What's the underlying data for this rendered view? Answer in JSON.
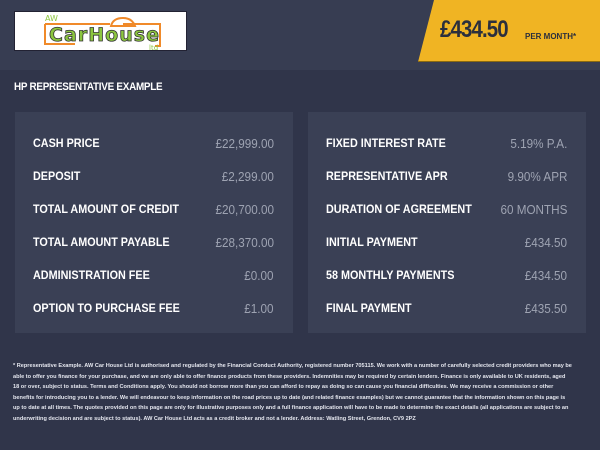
{
  "header": {
    "logo_text": "AW CarHouse Ltd",
    "monthly_price": "£434.50",
    "per_month_label": "PER MONTH*"
  },
  "section_title": "HP REPRESENTATIVE EXAMPLE",
  "left": [
    {
      "label": "CASH PRICE",
      "value": "£22,999.00"
    },
    {
      "label": "DEPOSIT",
      "value": "£2,299.00"
    },
    {
      "label": "TOTAL AMOUNT OF CREDIT",
      "value": "£20,700.00"
    },
    {
      "label": "TOTAL AMOUNT PAYABLE",
      "value": "£28,370.00"
    },
    {
      "label": "ADMINISTRATION FEE",
      "value": "£0.00"
    },
    {
      "label": "OPTION TO PURCHASE FEE",
      "value": "£1.00"
    }
  ],
  "right": [
    {
      "label": "FIXED INTEREST RATE",
      "value": "5.19% P.A."
    },
    {
      "label": "REPRESENTATIVE APR",
      "value": "9.90% APR"
    },
    {
      "label": "DURATION OF AGREEMENT",
      "value": "60 MONTHS"
    },
    {
      "label": "INITIAL PAYMENT",
      "value": "£434.50"
    },
    {
      "label": "58 MONTHLY PAYMENTS",
      "value": "£434.50"
    },
    {
      "label": "FINAL PAYMENT",
      "value": "£435.50"
    }
  ],
  "disclaimer": "* Representative Example. AW Car House Ltd is authorised and regulated by the Financial Conduct Authority, registered number 705115. We work with a number of carefully selected credit providers who may be able to offer you finance for your purchase, and we are only able to offer finance products from these providers. Indemnities may be required by certain lenders. Finance is only available to UK residents, aged 18 or over, subject to status. Terms and Conditions apply. You should not borrow more than you can afford to repay as doing so can cause you financial difficulties. We may receive a commission or other benefits for introducing you to a lender. We will endeavour to keep information on the road prices up to date (and related finance examples) but we cannot guarantee that the information shown on this page is up to date at all times. The quotes provided on this page are only for illustrative purposes only and a full finance application will have to be made to determine the exact details (all applications are subject to an underwriting decision and are subject to status). AW Car House Ltd acts as a credit broker and not a lender. Address: Watling Street, Grendon, CV9 2PZ"
}
